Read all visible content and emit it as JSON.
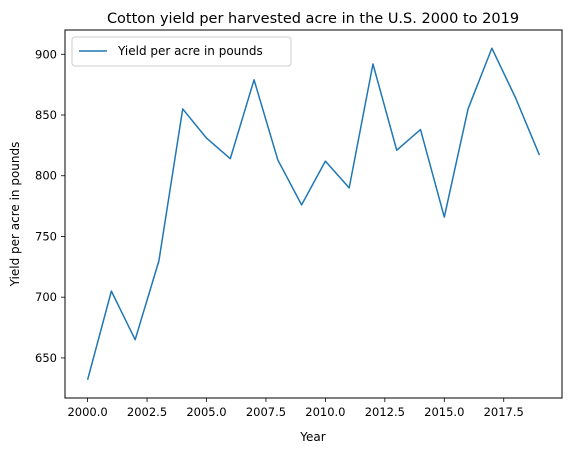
{
  "chart_data": {
    "type": "line",
    "title": "Cotton yield per harvested acre in the U.S. 2000 to 2019",
    "xlabel": "Year",
    "ylabel": "Yield per acre in pounds",
    "xlim": [
      1999.05,
      2019.95
    ],
    "ylim": [
      617,
      920
    ],
    "xticks": [
      2000.0,
      2002.5,
      2005.0,
      2007.5,
      2010.0,
      2012.5,
      2015.0,
      2017.5
    ],
    "xtick_labels": [
      "2000.0",
      "2002.5",
      "2005.0",
      "2007.5",
      "2010.0",
      "2012.5",
      "2015.0",
      "2017.5"
    ],
    "yticks": [
      650,
      700,
      750,
      800,
      850,
      900
    ],
    "ytick_labels": [
      "650",
      "700",
      "750",
      "800",
      "850",
      "900"
    ],
    "grid": false,
    "legend_position": "top-left",
    "series": [
      {
        "name": "Yield per acre in pounds",
        "color": "#1f77b4",
        "x": [
          2000,
          2001,
          2002,
          2003,
          2004,
          2005,
          2006,
          2007,
          2008,
          2009,
          2010,
          2011,
          2012,
          2013,
          2014,
          2015,
          2016,
          2017,
          2018,
          2019
        ],
        "values": [
          632,
          705,
          665,
          730,
          855,
          831,
          814,
          879,
          813,
          776,
          812,
          790,
          892,
          821,
          838,
          766,
          855,
          905,
          864,
          817
        ]
      }
    ]
  }
}
